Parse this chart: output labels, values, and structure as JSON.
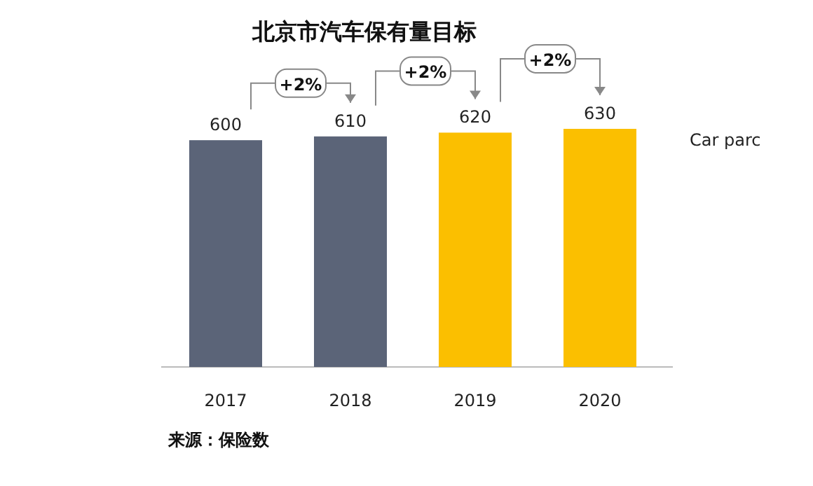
{
  "chart_data": {
    "type": "bar",
    "title": "北京市汽车保有量目标",
    "categories": [
      "2017",
      "2018",
      "2019",
      "2020"
    ],
    "series": [
      {
        "name": "Car parc",
        "colors": [
          "#5b6478",
          "#5b6478",
          "#fbbf00",
          "#fbbf00"
        ],
        "values": [
          600,
          610,
          620,
          630
        ]
      }
    ],
    "data_labels": true,
    "relative": false,
    "annotations": [
      "+2%",
      "+2%",
      "+2%",
      "来源：保险数"
    ]
  }
}
